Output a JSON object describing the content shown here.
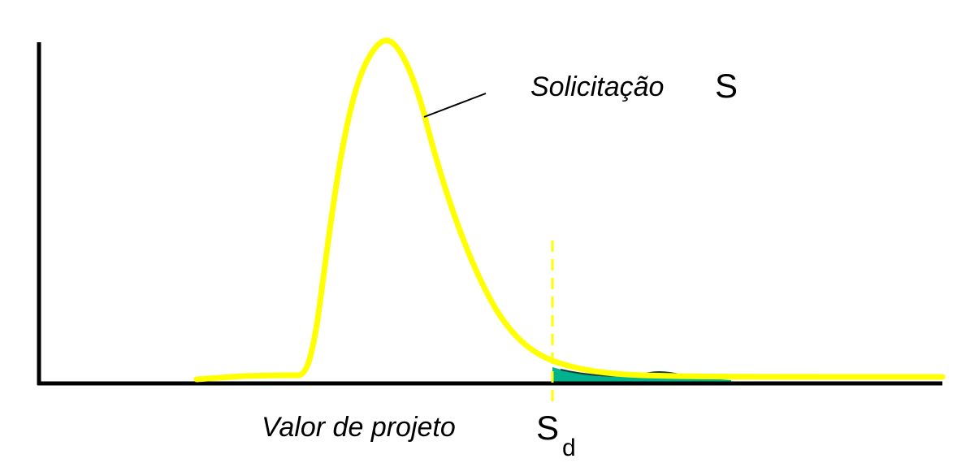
{
  "diagram": {
    "curve_label": "Solicitação",
    "curve_symbol": "S",
    "design_value_label": "Valor de projeto",
    "design_symbol_main": "S",
    "design_symbol_sub": "d"
  },
  "colors": {
    "curve": "#ffff00",
    "tail_fill": "#00b38f",
    "axes": "#000000",
    "background": "#ffffff"
  }
}
